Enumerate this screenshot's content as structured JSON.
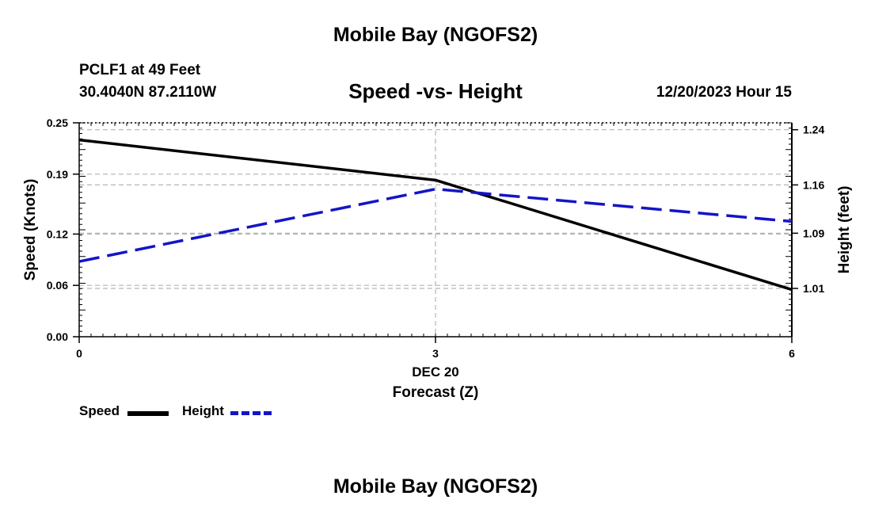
{
  "page": {
    "title": "Mobile Bay (NGOFS2)",
    "bottom_title": "Mobile Bay (NGOFS2)",
    "station": "PCLF1 at 49 Feet",
    "coords": "30.4040N  87.2110W",
    "datetime": "12/20/2023 Hour 15"
  },
  "colors": {
    "speed": "#000000",
    "height": "#1414c8",
    "grid": "#b4b4b4"
  },
  "chart_data": {
    "type": "line",
    "title": "Speed -vs- Height",
    "xlabel": "Forecast (Z)",
    "xlabel_date": "DEC 20",
    "ylabel_left": "Speed (Knots)",
    "ylabel_right": "Height (feet)",
    "x": [
      0,
      3,
      6
    ],
    "x_ticks": [
      0,
      3,
      6
    ],
    "x_tick_labels": [
      "0",
      "3",
      "6"
    ],
    "xlim": [
      0,
      6
    ],
    "ylim_left": [
      0,
      0.25
    ],
    "y_ticks_left": [
      0.0,
      0.06,
      0.12,
      0.19,
      0.25
    ],
    "y_tick_labels_left": [
      "0.00",
      "0.06",
      "0.12",
      "0.19",
      "0.25"
    ],
    "ylim_right": [
      0.94,
      1.25
    ],
    "y_ticks_right": [
      1.01,
      1.09,
      1.16,
      1.24
    ],
    "y_tick_labels_right": [
      "1.01",
      "1.09",
      "1.16",
      "1.24"
    ],
    "series": [
      {
        "name": "Speed",
        "axis": "left",
        "style": "solid",
        "values": [
          0.23,
          0.183,
          0.055
        ]
      },
      {
        "name": "Height",
        "axis": "right",
        "style": "dashed",
        "values": [
          1.049,
          1.154,
          1.107
        ]
      }
    ],
    "grid": true,
    "legend": [
      "Speed",
      "Height"
    ],
    "legend_position": "bottom-left"
  }
}
